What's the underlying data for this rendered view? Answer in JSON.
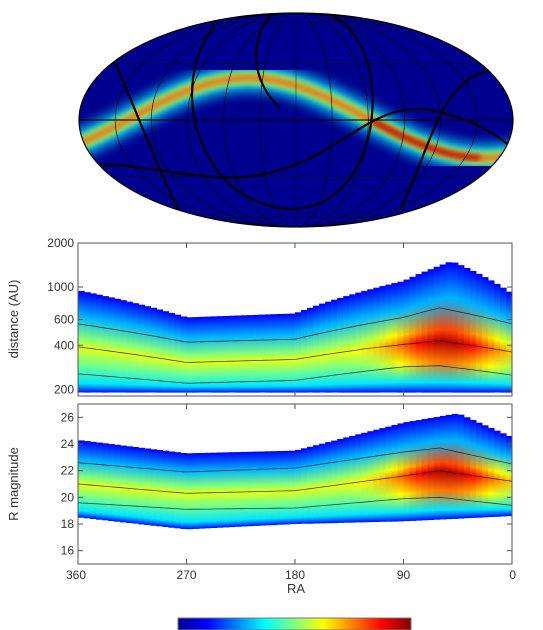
{
  "chart_data": [
    {
      "type": "heatmap",
      "projection": "mollweide",
      "title": "",
      "colormap": "jet",
      "background_color": "#00008f",
      "description_of_band": "density band following a sinusoidal track across the sky; peak near RA 60-90",
      "grid": true
    },
    {
      "type": "heatmap",
      "colormap": "jet",
      "xlabel": "",
      "ylabel": "distance (AU)",
      "yscale": "log",
      "ylim": [
        180,
        2000
      ],
      "xlim": [
        360,
        0
      ],
      "yticks": [
        200,
        400,
        600,
        1000,
        2000
      ],
      "ytick_labels": [
        "200",
        "400",
        "600",
        "1000",
        "2000"
      ],
      "contour_median": [
        {
          "ra": 360,
          "value": 390
        },
        {
          "ra": 270,
          "value": 305
        },
        {
          "ra": 180,
          "value": 320
        },
        {
          "ra": 120,
          "value": 380
        },
        {
          "ra": 60,
          "value": 430
        },
        {
          "ra": 0,
          "value": 360
        }
      ],
      "contour_inner": [
        [
          360,
          255
        ],
        [
          270,
          220
        ],
        [
          180,
          230
        ],
        [
          90,
          285
        ],
        [
          60,
          290
        ],
        [
          0,
          250
        ]
      ],
      "contour_outer": [
        [
          360,
          560
        ],
        [
          270,
          420
        ],
        [
          180,
          440
        ],
        [
          90,
          620
        ],
        [
          60,
          720
        ],
        [
          0,
          560
        ]
      ],
      "envelope_upper": [
        [
          360,
          950
        ],
        [
          270,
          620
        ],
        [
          180,
          660
        ],
        [
          90,
          1100
        ],
        [
          50,
          1500
        ],
        [
          0,
          900
        ]
      ],
      "envelope_lower": [
        [
          360,
          190
        ],
        [
          270,
          190
        ],
        [
          180,
          190
        ],
        [
          90,
          190
        ],
        [
          0,
          190
        ]
      ],
      "peak": {
        "ra": 55,
        "value": 440
      }
    },
    {
      "type": "heatmap",
      "colormap": "jet",
      "xlabel": "RA",
      "ylabel": "R magnitude",
      "ylim": [
        15,
        27
      ],
      "xlim": [
        360,
        0
      ],
      "xticks": [
        360,
        270,
        180,
        90,
        0
      ],
      "xtick_labels": [
        "360",
        "270",
        "180",
        "90",
        "0"
      ],
      "yticks": [
        16,
        18,
        20,
        22,
        24,
        26
      ],
      "ytick_labels": [
        "16",
        "18",
        "20",
        "22",
        "24",
        "26"
      ],
      "contour_median": [
        [
          360,
          21
        ],
        [
          270,
          20.3
        ],
        [
          180,
          20.5
        ],
        [
          90,
          21.6
        ],
        [
          60,
          22
        ],
        [
          0,
          21.2
        ]
      ],
      "contour_inner": [
        [
          360,
          19.6
        ],
        [
          270,
          19.1
        ],
        [
          180,
          19.2
        ],
        [
          90,
          19.9
        ],
        [
          60,
          20
        ],
        [
          0,
          19.4
        ]
      ],
      "contour_outer": [
        [
          360,
          22.6
        ],
        [
          270,
          21.9
        ],
        [
          180,
          22.2
        ],
        [
          90,
          23.4
        ],
        [
          60,
          23.7
        ],
        [
          0,
          22.5
        ]
      ],
      "envelope_upper": [
        [
          360,
          24.3
        ],
        [
          270,
          23.3
        ],
        [
          180,
          23.5
        ],
        [
          90,
          25.6
        ],
        [
          45,
          26.3
        ],
        [
          0,
          24.5
        ]
      ],
      "envelope_lower": [
        [
          360,
          18.5
        ],
        [
          270,
          17.6
        ],
        [
          180,
          18
        ],
        [
          90,
          18.2
        ],
        [
          0,
          18.6
        ]
      ],
      "peak": {
        "ra": 55,
        "value": 21.6
      }
    }
  ],
  "colorbar": {
    "colormap": "jet",
    "label": ""
  }
}
